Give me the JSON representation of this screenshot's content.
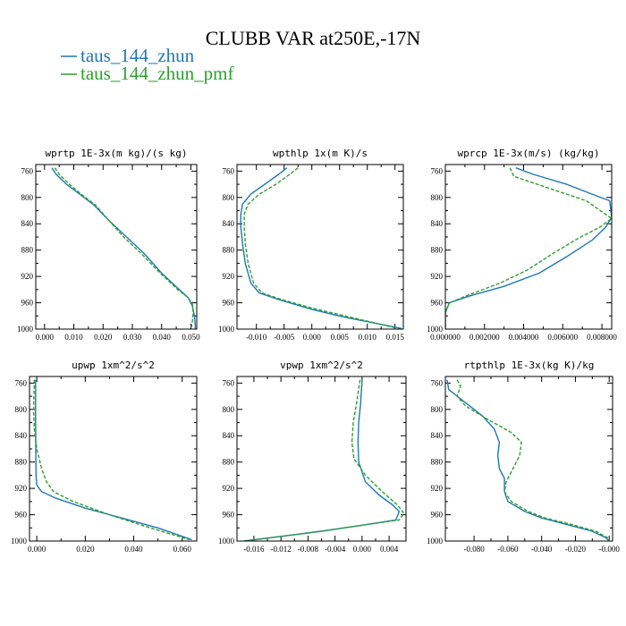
{
  "figure": {
    "title": "CLUBB VAR at250E,-17N",
    "legend": [
      {
        "label": "taus_144_zhun",
        "color": "#1f77b4",
        "dash": "solid"
      },
      {
        "label": "taus_144_zhun_pmf",
        "color": "#2ca02c",
        "dash": "dashed"
      }
    ]
  },
  "chart_data": [
    {
      "type": "line",
      "title": "wprtp  1E-3x(m kg)/(s kg)",
      "xlim": [
        -0.003,
        0.052
      ],
      "ylim": [
        1000,
        750
      ],
      "x_ticks": [
        0.0,
        0.01,
        0.02,
        0.03,
        0.04,
        0.05
      ],
      "x_tick_labels": [
        "0.000",
        "0.010",
        "0.020",
        "0.030",
        "0.040",
        "0.050"
      ],
      "y_ticks": [
        760,
        800,
        840,
        880,
        920,
        960,
        1000
      ],
      "series": [
        {
          "name": "taus_144_zhun",
          "color": "#1f77b4",
          "dash": "solid",
          "points": [
            [
              0.0025,
              755
            ],
            [
              0.004,
              765
            ],
            [
              0.0075,
              780
            ],
            [
              0.012,
              795
            ],
            [
              0.017,
              812
            ],
            [
              0.022,
              835
            ],
            [
              0.028,
              860
            ],
            [
              0.034,
              885
            ],
            [
              0.04,
              915
            ],
            [
              0.046,
              940
            ],
            [
              0.049,
              952
            ],
            [
              0.0505,
              965
            ],
            [
              0.0512,
              980
            ],
            [
              0.0515,
              995
            ],
            [
              0.0515,
              1000
            ]
          ]
        },
        {
          "name": "taus_144_zhun_pmf",
          "color": "#2ca02c",
          "dash": "dashed",
          "points": [
            [
              0.0035,
              755
            ],
            [
              0.005,
              765
            ],
            [
              0.0085,
              780
            ],
            [
              0.0125,
              795
            ],
            [
              0.0175,
              812
            ],
            [
              0.022,
              835
            ],
            [
              0.027,
              860
            ],
            [
              0.033,
              885
            ],
            [
              0.0395,
              915
            ],
            [
              0.0455,
              940
            ],
            [
              0.049,
              952
            ],
            [
              0.0505,
              962
            ],
            [
              0.0508,
              975
            ],
            [
              0.0505,
              988
            ],
            [
              0.05,
              1000
            ]
          ]
        }
      ]
    },
    {
      "type": "line",
      "title": "wpthlp  1x(m K)/s",
      "xlim": [
        -0.0135,
        0.0165
      ],
      "ylim": [
        1000,
        750
      ],
      "x_ticks": [
        -0.01,
        -0.005,
        0.0,
        0.005,
        0.01,
        0.015
      ],
      "x_tick_labels": [
        "-0.010",
        "-0.005",
        "0.000",
        "0.005",
        "0.010",
        "0.015"
      ],
      "y_ticks": [
        760,
        800,
        840,
        880,
        920,
        960,
        1000
      ],
      "series": [
        {
          "name": "taus_144_zhun",
          "color": "#1f77b4",
          "dash": "solid",
          "points": [
            [
              -0.0045,
              755
            ],
            [
              -0.006,
              765
            ],
            [
              -0.0085,
              780
            ],
            [
              -0.011,
              795
            ],
            [
              -0.0125,
              810
            ],
            [
              -0.0128,
              825
            ],
            [
              -0.0128,
              845
            ],
            [
              -0.0125,
              870
            ],
            [
              -0.012,
              900
            ],
            [
              -0.011,
              930
            ],
            [
              -0.0095,
              945
            ],
            [
              -0.006,
              955
            ],
            [
              0.0,
              970
            ],
            [
              0.006,
              982
            ],
            [
              0.012,
              992
            ],
            [
              0.0162,
              999
            ]
          ]
        },
        {
          "name": "taus_144_zhun_pmf",
          "color": "#2ca02c",
          "dash": "dashed",
          "points": [
            [
              -0.0025,
              755
            ],
            [
              -0.004,
              765
            ],
            [
              -0.0065,
              780
            ],
            [
              -0.0095,
              795
            ],
            [
              -0.0115,
              810
            ],
            [
              -0.0122,
              825
            ],
            [
              -0.0122,
              845
            ],
            [
              -0.012,
              870
            ],
            [
              -0.0115,
              900
            ],
            [
              -0.0105,
              930
            ],
            [
              -0.009,
              945
            ],
            [
              -0.0055,
              955
            ],
            [
              0.0,
              968
            ],
            [
              0.006,
              980
            ],
            [
              0.011,
              990
            ],
            [
              0.015,
              998
            ]
          ]
        }
      ]
    },
    {
      "type": "line",
      "title": "wprcp  1E-3x(m/s) (kg/kg)",
      "xlim": [
        0.0,
        0.0085
      ],
      "ylim": [
        1000,
        750
      ],
      "x_ticks": [
        0.0,
        0.002,
        0.004,
        0.006,
        0.008
      ],
      "x_tick_labels": [
        "0.000000",
        "0.002000",
        "0.004000",
        "0.006000",
        "0.008000"
      ],
      "y_ticks": [
        760,
        800,
        840,
        880,
        920,
        960,
        1000
      ],
      "series": [
        {
          "name": "taus_144_zhun",
          "color": "#1f77b4",
          "dash": "solid",
          "points": [
            [
              0.0036,
              755
            ],
            [
              0.0045,
              765
            ],
            [
              0.0062,
              780
            ],
            [
              0.0075,
              795
            ],
            [
              0.0084,
              805
            ],
            [
              0.0085,
              830
            ],
            [
              0.0082,
              845
            ],
            [
              0.0075,
              865
            ],
            [
              0.0062,
              890
            ],
            [
              0.0048,
              915
            ],
            [
              0.003,
              935
            ],
            [
              0.0012,
              950
            ],
            [
              0.0002,
              960
            ],
            [
              0.0,
              975
            ],
            [
              0.0,
              1000
            ]
          ]
        },
        {
          "name": "taus_144_zhun_pmf",
          "color": "#2ca02c",
          "dash": "dashed",
          "points": [
            [
              0.0033,
              755
            ],
            [
              0.0035,
              768
            ],
            [
              0.0052,
              785
            ],
            [
              0.0072,
              805
            ],
            [
              0.0085,
              832
            ],
            [
              0.0079,
              845
            ],
            [
              0.0068,
              862
            ],
            [
              0.0055,
              885
            ],
            [
              0.0042,
              910
            ],
            [
              0.0028,
              930
            ],
            [
              0.0012,
              948
            ],
            [
              0.0002,
              960
            ],
            [
              0.0,
              975
            ],
            [
              0.0,
              1000
            ]
          ]
        }
      ]
    },
    {
      "type": "line",
      "title": "upwp  1xm^2/s^2",
      "xlim": [
        -0.003,
        0.066
      ],
      "ylim": [
        1000,
        750
      ],
      "x_ticks": [
        0.0,
        0.02,
        0.04,
        0.06
      ],
      "x_tick_labels": [
        "0.000",
        "0.020",
        "0.040",
        "0.060"
      ],
      "y_ticks": [
        760,
        800,
        840,
        880,
        920,
        960,
        1000
      ],
      "series": [
        {
          "name": "taus_144_zhun",
          "color": "#1f77b4",
          "dash": "solid",
          "points": [
            [
              -0.0005,
              755
            ],
            [
              -0.0005,
              780
            ],
            [
              -0.0005,
              820
            ],
            [
              -0.0004,
              860
            ],
            [
              -0.0003,
              900
            ],
            [
              0.0,
              915
            ],
            [
              0.002,
              925
            ],
            [
              0.008,
              935
            ],
            [
              0.02,
              950
            ],
            [
              0.035,
              965
            ],
            [
              0.05,
              980
            ],
            [
              0.064,
              998
            ]
          ]
        },
        {
          "name": "taus_144_zhun_pmf",
          "color": "#2ca02c",
          "dash": "dashed",
          "points": [
            [
              -0.001,
              755
            ],
            [
              -0.0012,
              780
            ],
            [
              -0.0013,
              800
            ],
            [
              -0.001,
              830
            ],
            [
              0.0,
              860
            ],
            [
              0.002,
              890
            ],
            [
              0.004,
              910
            ],
            [
              0.007,
              925
            ],
            [
              0.015,
              940
            ],
            [
              0.03,
              960
            ],
            [
              0.045,
              978
            ],
            [
              0.063,
              998
            ]
          ]
        }
      ]
    },
    {
      "type": "line",
      "title": "vpwp  1xm^2/s^2",
      "xlim": [
        -0.0185,
        0.0065
      ],
      "ylim": [
        1000,
        750
      ],
      "x_ticks": [
        -0.016,
        -0.012,
        -0.008,
        -0.004,
        0.0,
        0.004
      ],
      "x_tick_labels": [
        "-0.016",
        "-0.012",
        "-0.008",
        "-0.004",
        "0.000",
        "0.004"
      ],
      "y_ticks": [
        760,
        800,
        840,
        880,
        920,
        960,
        1000
      ],
      "series": [
        {
          "name": "taus_144_zhun",
          "color": "#1f77b4",
          "dash": "solid",
          "points": [
            [
              0.0,
              755
            ],
            [
              -0.0002,
              790
            ],
            [
              -0.0005,
              820
            ],
            [
              -0.0006,
              850
            ],
            [
              -0.0005,
              880
            ],
            [
              0.0005,
              910
            ],
            [
              0.0025,
              930
            ],
            [
              0.0045,
              945
            ],
            [
              0.0055,
              955
            ],
            [
              0.005,
              968
            ],
            [
              0.0,
              976
            ],
            [
              -0.006,
              985
            ],
            [
              -0.012,
              993
            ],
            [
              -0.0175,
              1000
            ]
          ]
        },
        {
          "name": "taus_144_zhun_pmf",
          "color": "#2ca02c",
          "dash": "dashed",
          "points": [
            [
              -0.0003,
              755
            ],
            [
              -0.0008,
              790
            ],
            [
              -0.0013,
              820
            ],
            [
              -0.0015,
              850
            ],
            [
              -0.0012,
              875
            ],
            [
              0.0005,
              900
            ],
            [
              0.003,
              925
            ],
            [
              0.0052,
              945
            ],
            [
              0.0062,
              958
            ],
            [
              0.0055,
              968
            ],
            [
              0.0,
              976
            ],
            [
              -0.006,
              985
            ],
            [
              -0.012,
              993
            ],
            [
              -0.0175,
              1000
            ]
          ]
        }
      ]
    },
    {
      "type": "line",
      "title": "rtpthlp  1E-3x(kg K)/kg",
      "xlim": [
        -0.097,
        0.002
      ],
      "ylim": [
        1000,
        750
      ],
      "x_ticks": [
        -0.08,
        -0.06,
        -0.04,
        -0.02,
        0.0
      ],
      "x_tick_labels": [
        "-0.080",
        "-0.060",
        "-0.040",
        "-0.020",
        "-0.000"
      ],
      "y_ticks": [
        760,
        800,
        840,
        880,
        920,
        960,
        1000
      ],
      "series": [
        {
          "name": "taus_144_zhun",
          "color": "#1f77b4",
          "dash": "solid",
          "points": [
            [
              -0.096,
              755
            ],
            [
              -0.095,
              770
            ],
            [
              -0.085,
              790
            ],
            [
              -0.075,
              810
            ],
            [
              -0.068,
              830
            ],
            [
              -0.065,
              850
            ],
            [
              -0.066,
              870
            ],
            [
              -0.065,
              890
            ],
            [
              -0.062,
              905
            ],
            [
              -0.062,
              925
            ],
            [
              -0.06,
              940
            ],
            [
              -0.05,
              955
            ],
            [
              -0.04,
              965
            ],
            [
              -0.025,
              975
            ],
            [
              -0.01,
              985
            ],
            [
              -0.002,
              995
            ],
            [
              0.0,
              1000
            ]
          ]
        },
        {
          "name": "taus_144_zhun_pmf",
          "color": "#2ca02c",
          "dash": "dashed",
          "points": [
            [
              -0.09,
              755
            ],
            [
              -0.088,
              765
            ],
            [
              -0.09,
              780
            ],
            [
              -0.085,
              795
            ],
            [
              -0.072,
              815
            ],
            [
              -0.058,
              835
            ],
            [
              -0.052,
              850
            ],
            [
              -0.053,
              870
            ],
            [
              -0.057,
              890
            ],
            [
              -0.061,
              910
            ],
            [
              -0.062,
              925
            ],
            [
              -0.058,
              940
            ],
            [
              -0.048,
              955
            ],
            [
              -0.038,
              965
            ],
            [
              -0.022,
              975
            ],
            [
              -0.008,
              985
            ],
            [
              -0.001,
              995
            ],
            [
              0.0,
              1000
            ]
          ]
        }
      ]
    }
  ]
}
